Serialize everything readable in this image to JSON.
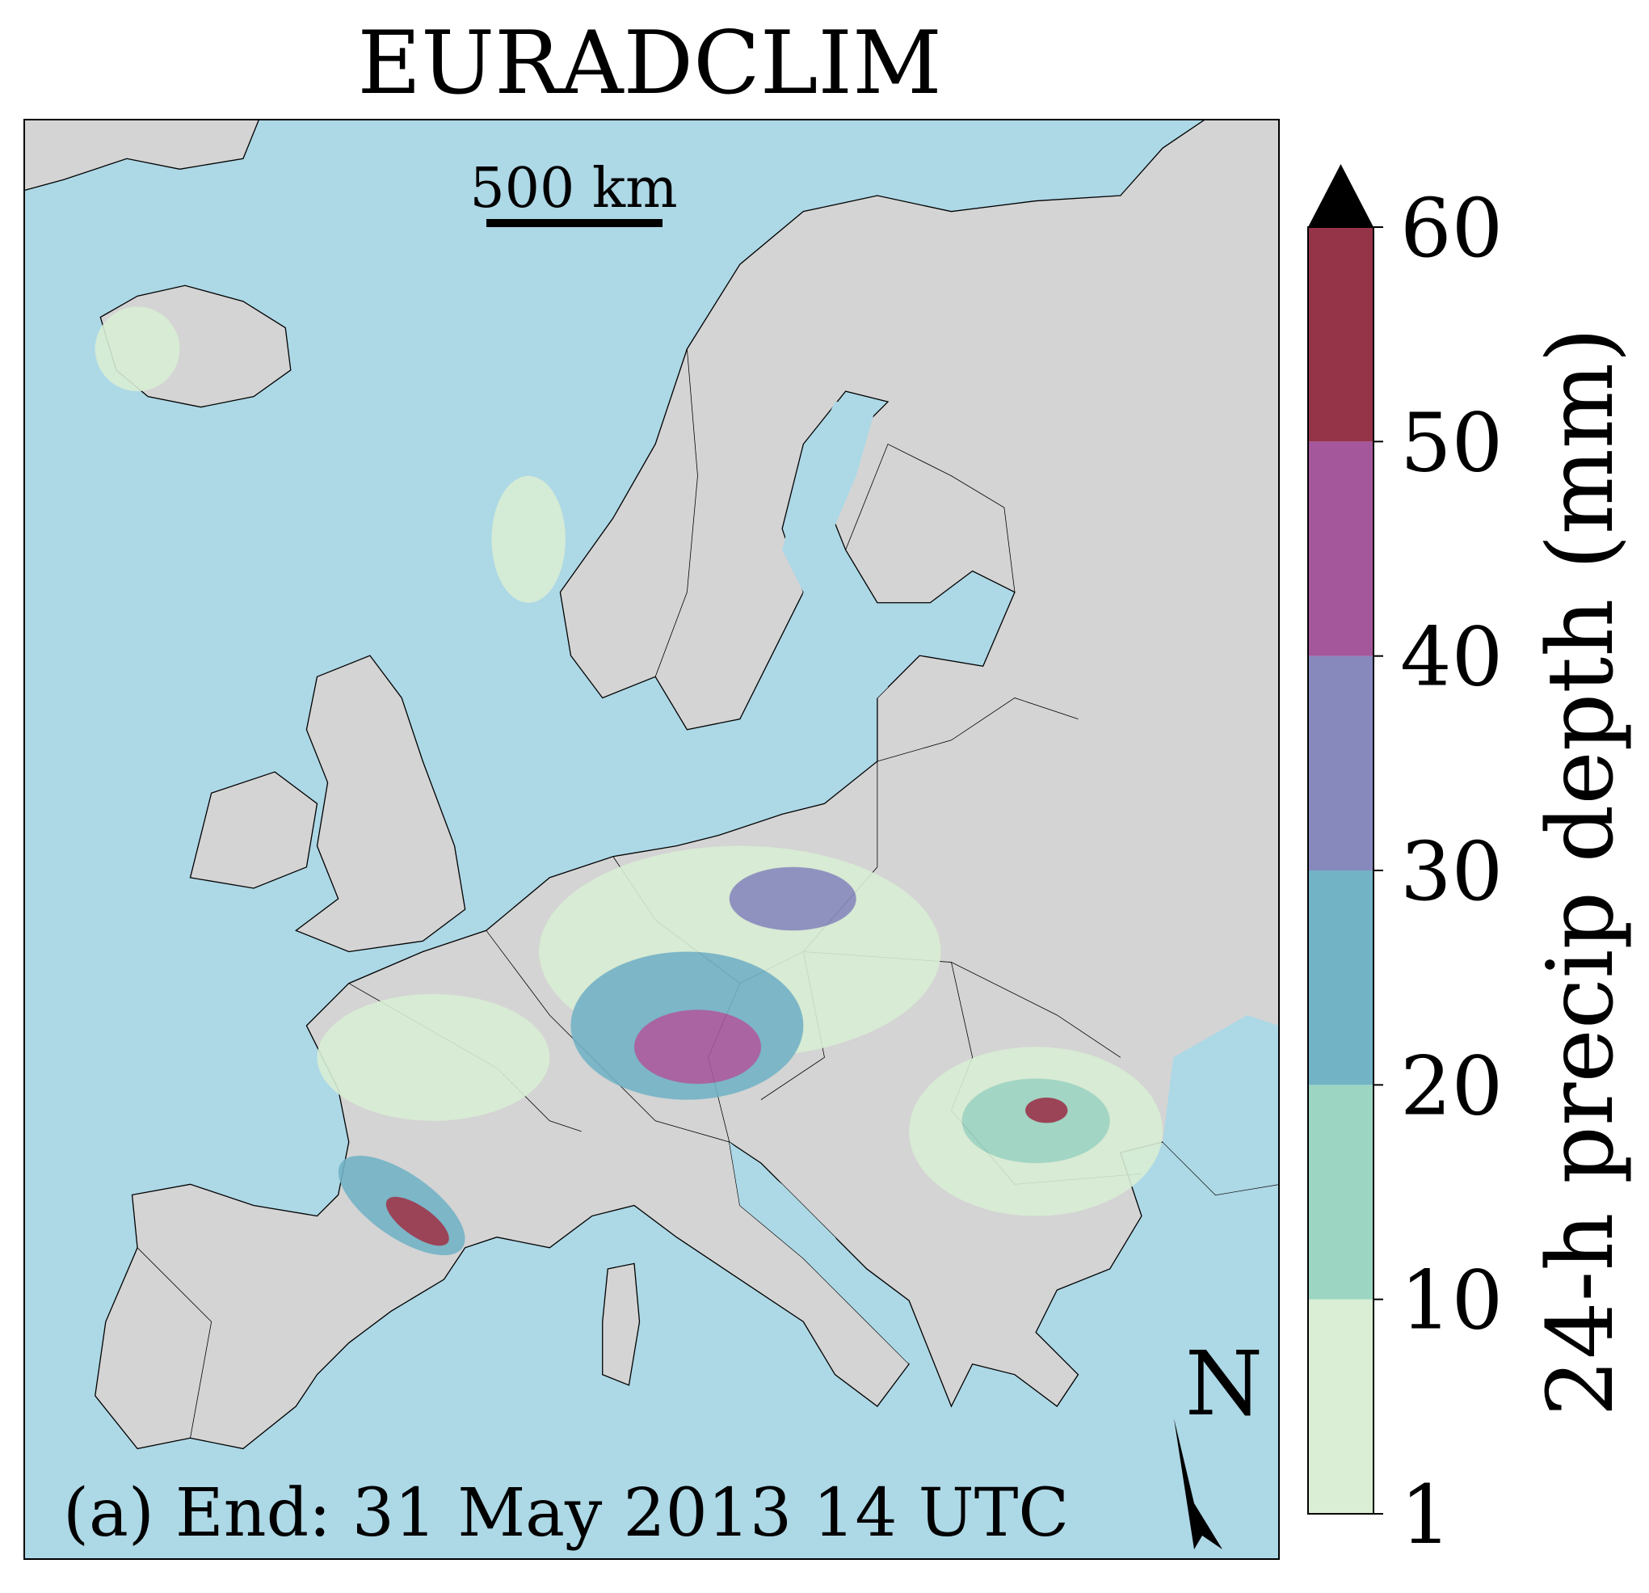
{
  "title": "EURADCLIM",
  "scale_bar": "500 km",
  "north": "N",
  "caption": "(a) End: 31 May 2013 14 UTC",
  "colorbar": {
    "label": "24-h precip depth (mm)",
    "ticks": [
      1,
      10,
      20,
      30,
      40,
      50,
      60
    ],
    "colors": [
      "#d9eed4",
      "#9cd5c2",
      "#72b3c6",
      "#8789bd",
      "#a5579b",
      "#953349"
    ],
    "extend_color": "#000000"
  }
}
